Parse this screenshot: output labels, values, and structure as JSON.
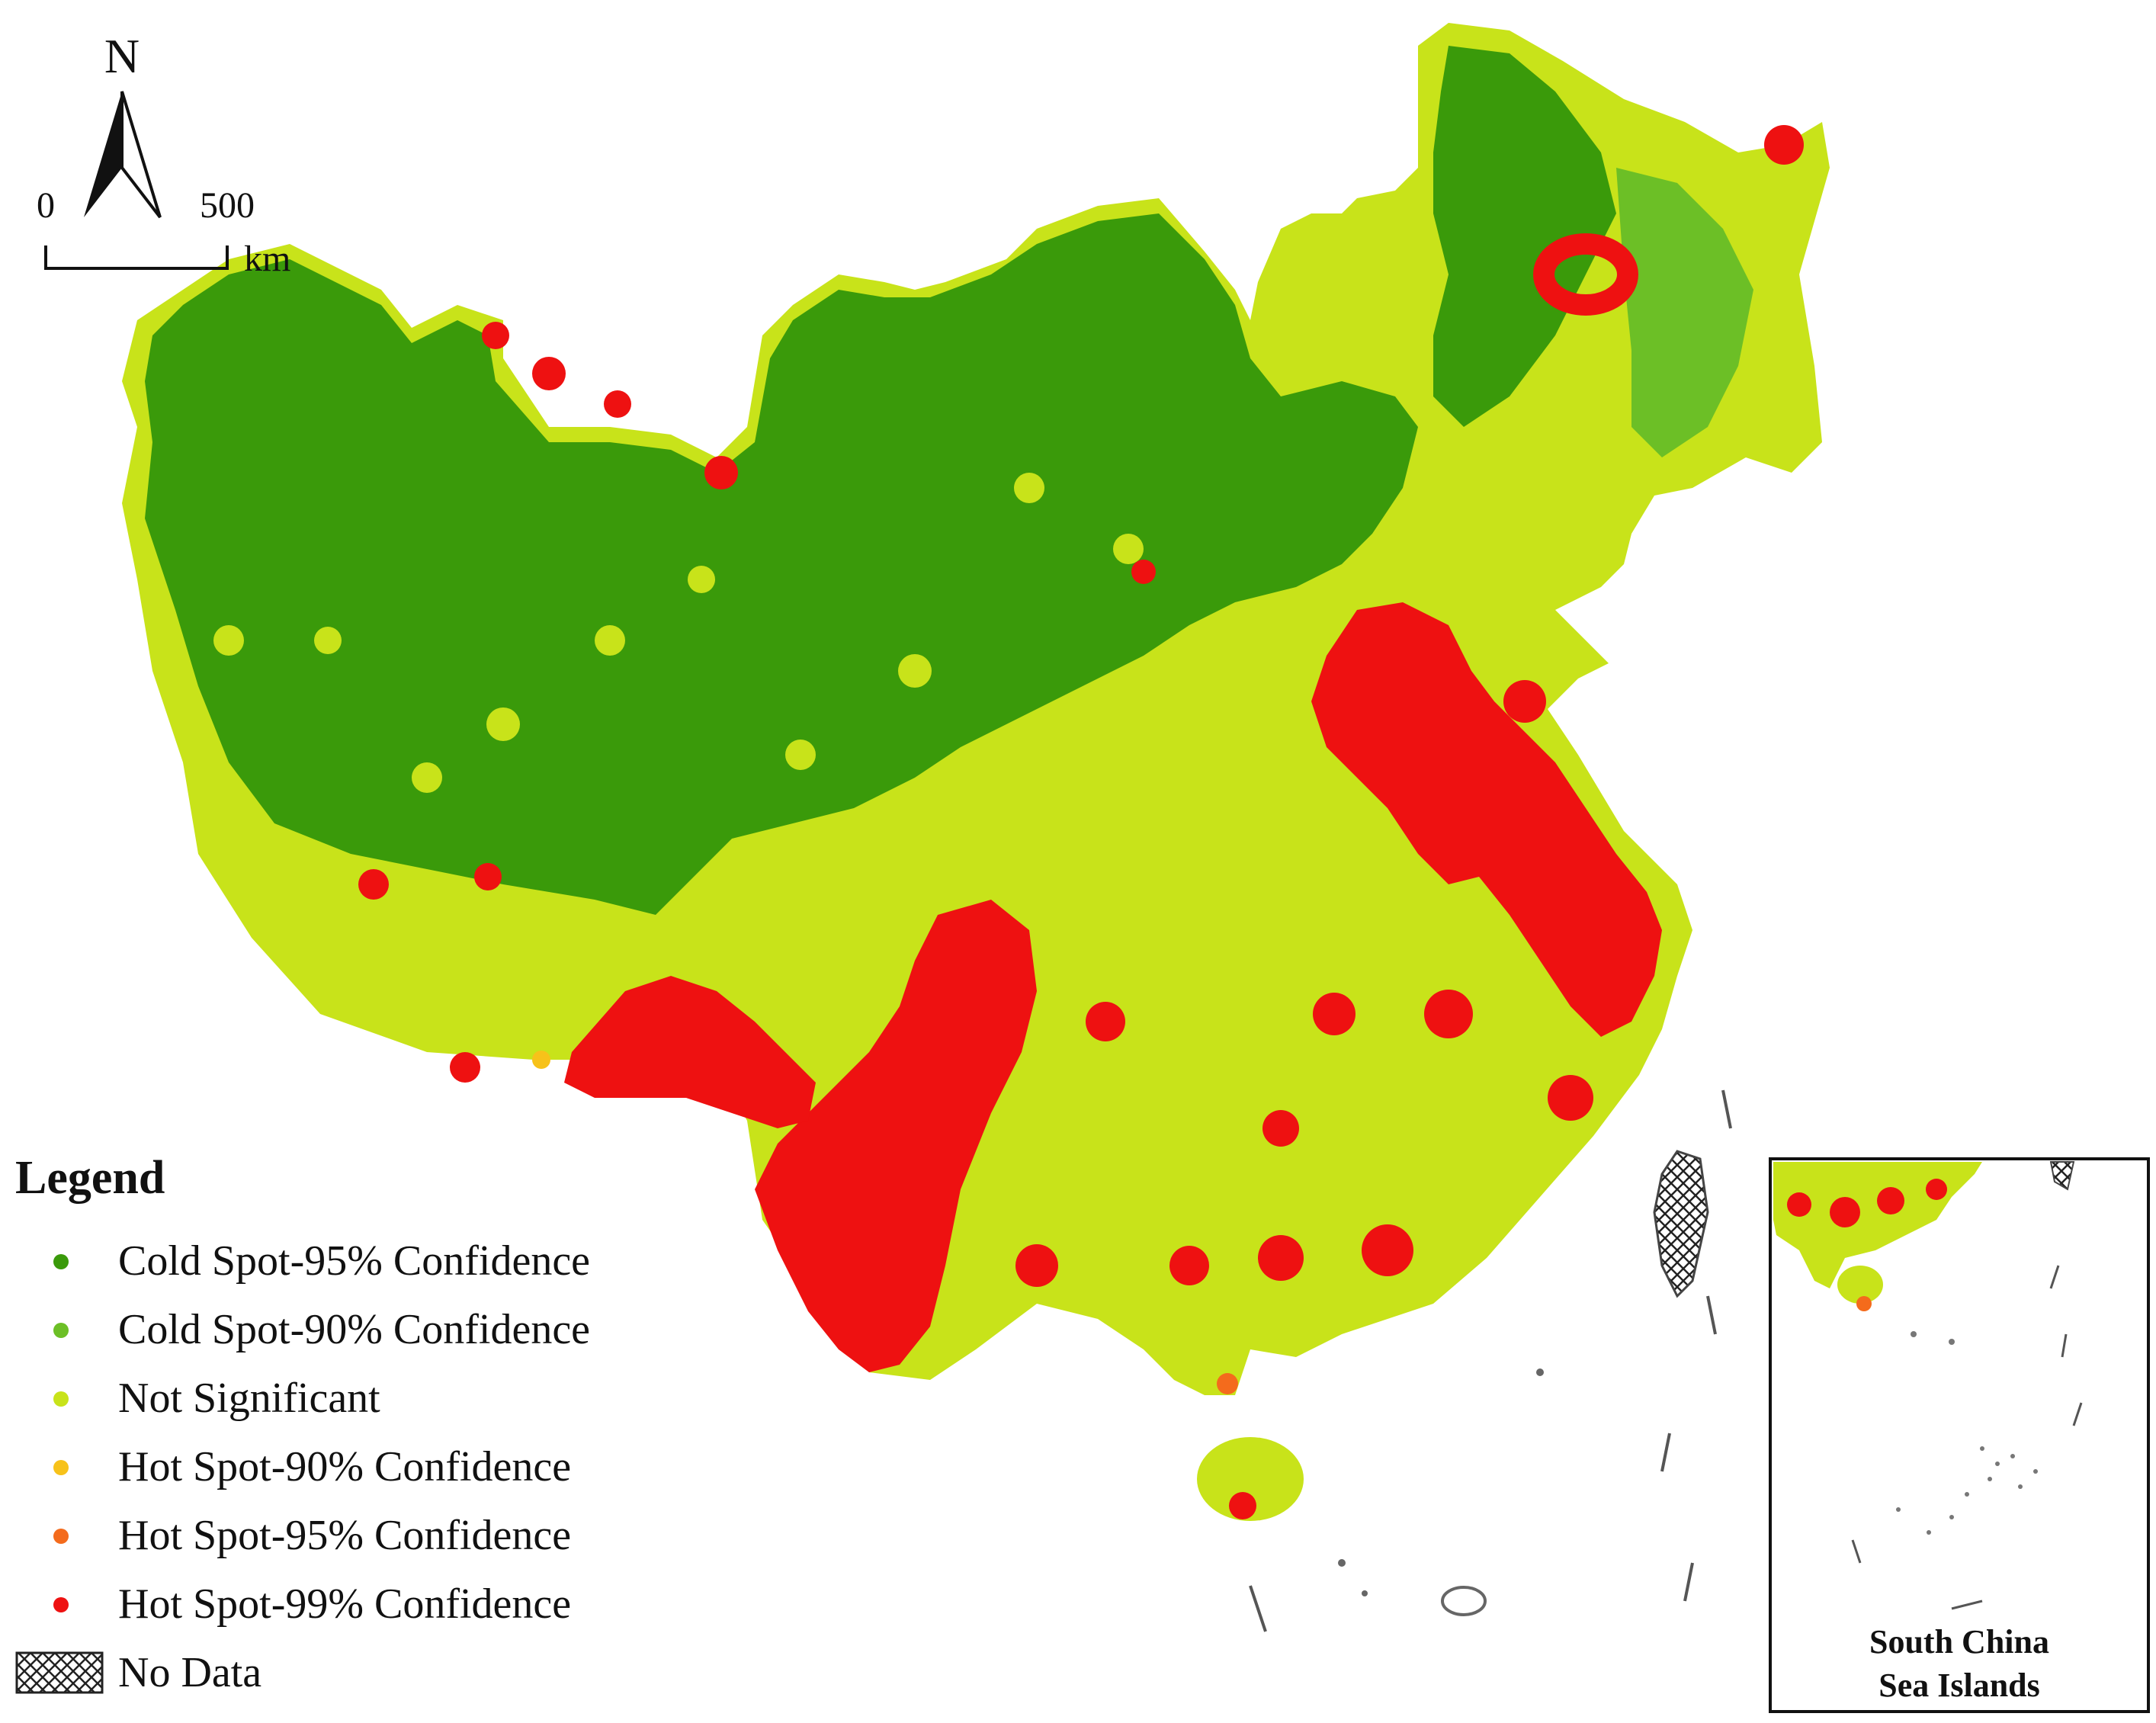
{
  "north_arrow": {
    "label": "N"
  },
  "scale_bar": {
    "start": "0",
    "end": "500",
    "unit": "km"
  },
  "legend": {
    "title": "Legend",
    "items": [
      {
        "label": "Cold Spot-95% Confidence",
        "color": "#3a9a0a",
        "symbol": "dot"
      },
      {
        "label": "Cold Spot-90% Confidence",
        "color": "#6cbf26",
        "symbol": "dot"
      },
      {
        "label": "Not Significant",
        "color": "#c8e31a",
        "symbol": "dot"
      },
      {
        "label": "Hot Spot-90% Confidence",
        "color": "#f7c21a",
        "symbol": "dot"
      },
      {
        "label": "Hot Spot-95% Confidence",
        "color": "#f46b1c",
        "symbol": "dot"
      },
      {
        "label": "Hot Spot-99% Confidence",
        "color": "#ee1111",
        "symbol": "dot"
      },
      {
        "label": "No Data",
        "color": "#ffffff",
        "symbol": "hatch"
      }
    ]
  },
  "inset": {
    "title_line1": "South China",
    "title_line2": "Sea Islands"
  }
}
